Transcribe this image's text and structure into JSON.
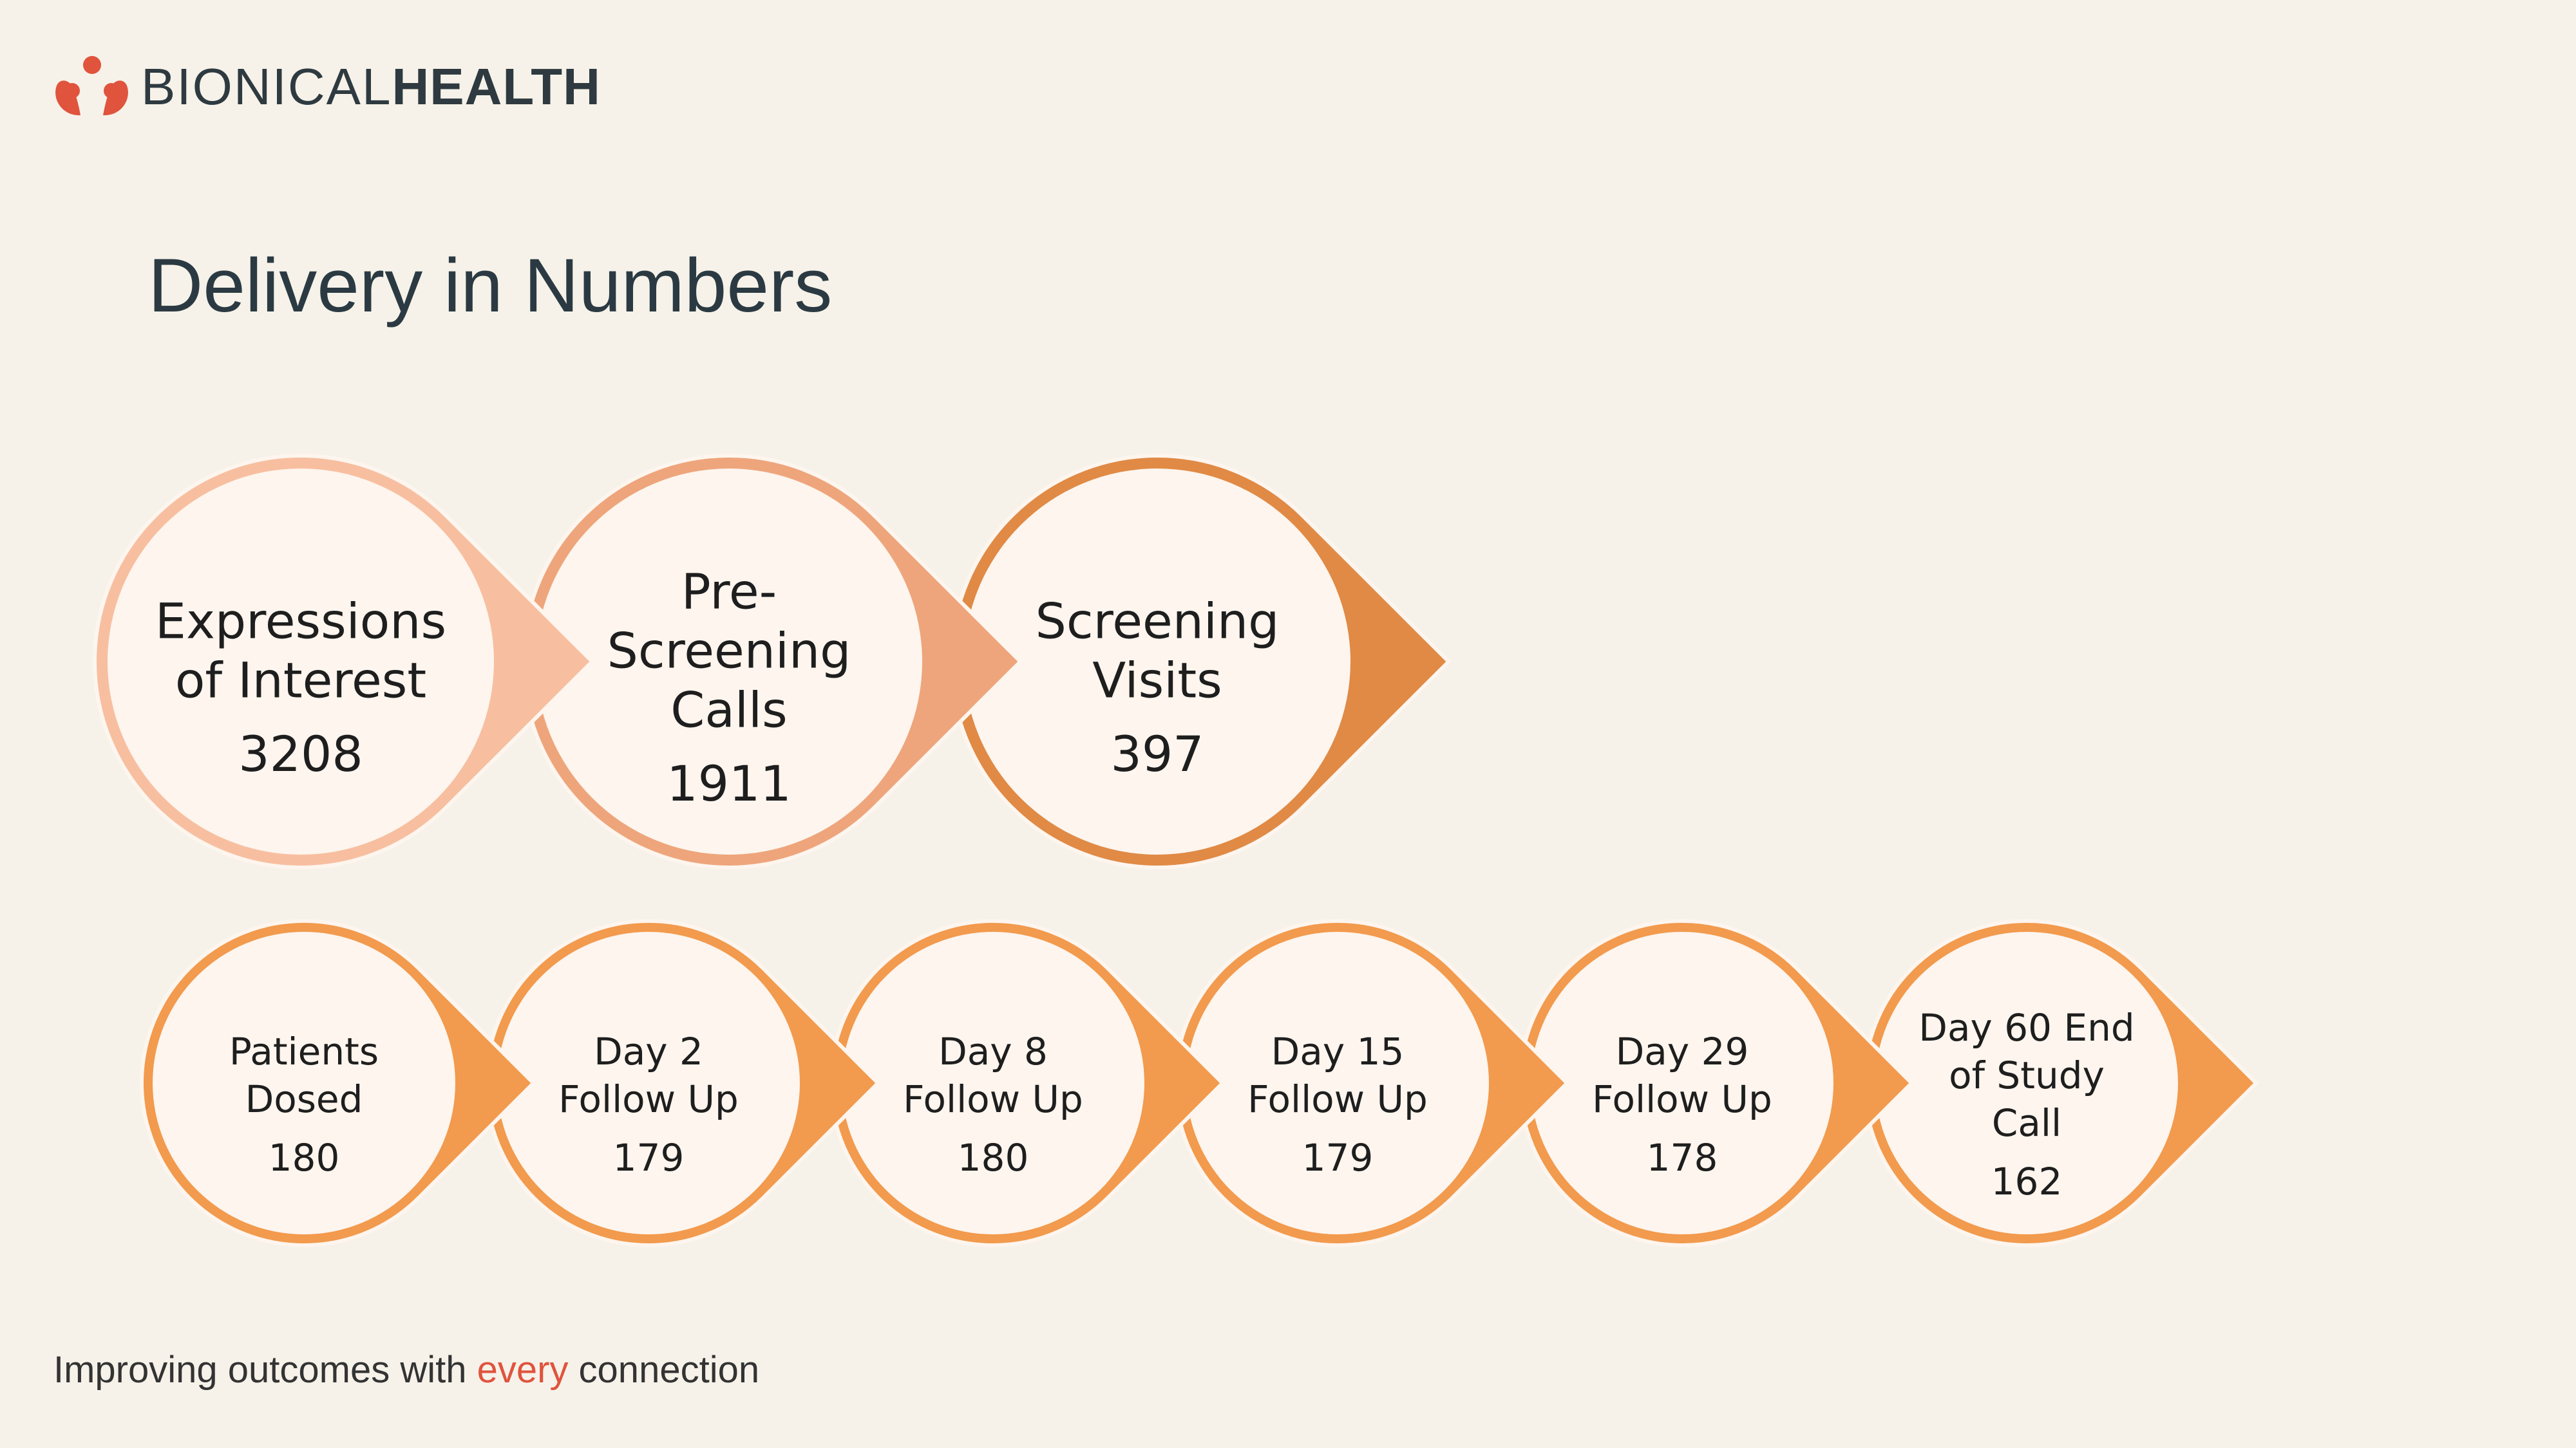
{
  "brand": {
    "name_light": "BIONICAL",
    "name_bold": "HEALTH",
    "color": "#e0533d"
  },
  "slide_title": "Delivery in Numbers",
  "tagline": {
    "before": "Improving outcomes with ",
    "accent": "every",
    "after": " connection"
  },
  "flow_top": [
    {
      "lines": [
        "Expressions",
        "of Interest"
      ],
      "value": "3208",
      "color": "#f7bfa0"
    },
    {
      "lines": [
        "Pre-",
        "Screening",
        "Calls"
      ],
      "value": "1911",
      "color": "#eea57b"
    },
    {
      "lines": [
        "Screening",
        "Visits"
      ],
      "value": "397",
      "color": "#e08a45"
    }
  ],
  "flow_bottom": [
    {
      "lines": [
        "Patients",
        "Dosed"
      ],
      "value": "180",
      "color": "#f29a4d"
    },
    {
      "lines": [
        "Day 2",
        "Follow Up"
      ],
      "value": "179",
      "color": "#f29a4d"
    },
    {
      "lines": [
        "Day 8",
        "Follow Up"
      ],
      "value": "180",
      "color": "#f29a4d"
    },
    {
      "lines": [
        "Day 15",
        "Follow Up"
      ],
      "value": "179",
      "color": "#f29a4d"
    },
    {
      "lines": [
        "Day 29",
        "Follow Up"
      ],
      "value": "178",
      "color": "#f29a4d"
    },
    {
      "lines": [
        "Day 60 End",
        "of Study",
        "Call"
      ],
      "value": "162",
      "color": "#f29a4d"
    }
  ]
}
